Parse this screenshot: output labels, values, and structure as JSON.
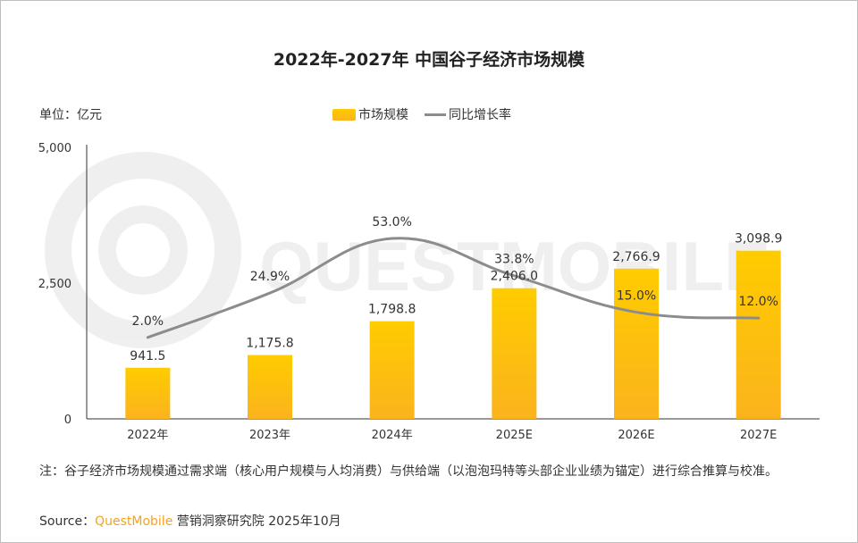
{
  "title": "2022年-2027年 中国谷子经济市场规模",
  "unit_label": "单位：亿元",
  "watermark": "QUESTMOBILE",
  "colors": {
    "bar_top": "#ffcc00",
    "bar_bottom": "#fbb31d",
    "line": "#8c8c8c"
  },
  "chart_data": {
    "type": "bar+line",
    "categories": [
      "2022年",
      "2023年",
      "2024年",
      "2025E",
      "2026E",
      "2027E"
    ],
    "series": [
      {
        "name": "市场规模",
        "type": "bar",
        "axis": "left",
        "values": [
          941.5,
          1175.8,
          1798.8,
          2406.0,
          2766.9,
          3098.9
        ],
        "labels": [
          "941.5",
          "1,175.8",
          "1,798.8",
          "2,406.0",
          "2,766.9",
          "3,098.9"
        ]
      },
      {
        "name": "同比增长率",
        "type": "line",
        "axis": "right-hidden",
        "smooth": true,
        "values": [
          2.0,
          24.9,
          53.0,
          33.8,
          15.0,
          12.0
        ],
        "labels": [
          "2.0%",
          "24.9%",
          "53.0%",
          "33.8%",
          "15.0%",
          "12.0%"
        ]
      }
    ],
    "ylim": [
      0,
      5000
    ],
    "y2lim": [
      -40,
      100
    ],
    "yticks": [
      "0",
      "2,500",
      "5,000"
    ],
    "ytick_values": [
      0,
      2500,
      5000
    ],
    "grid": false,
    "legend": "top-center"
  },
  "note": "注：谷子经济市场规模通过需求端（核心用户规模与人均消费）与供给端（以泡泡玛特等头部企业业绩为锚定）进行综合推算与校准。",
  "source": {
    "prefix": "Source：",
    "brand": "QuestMobile",
    "suffix": " 营销洞察研究院 2025年10月"
  }
}
